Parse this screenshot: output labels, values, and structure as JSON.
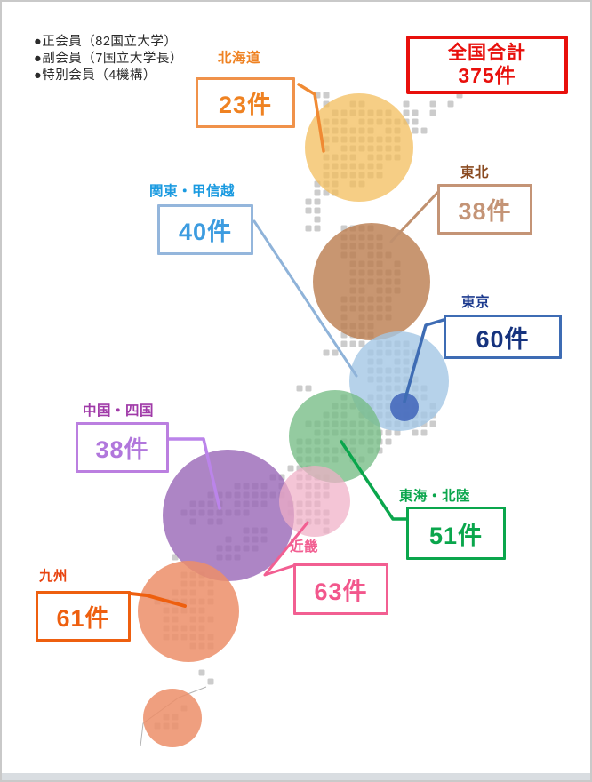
{
  "legend": {
    "items": [
      "●正会員（82国立大学）",
      "●副会員（7国立大学長）",
      "●特別会員（4機構）"
    ]
  },
  "total": {
    "label": "全国合計",
    "value": "375件",
    "color": "#e8100c"
  },
  "chart_data": {
    "type": "bubble-map",
    "title": "全国合計 375件",
    "unit": "件",
    "total": 375,
    "regions": [
      {
        "name": "北海道",
        "value": 23
      },
      {
        "name": "東北",
        "value": 38
      },
      {
        "name": "関東・甲信越",
        "value": 40
      },
      {
        "name": "東京",
        "value": 60
      },
      {
        "name": "東海・北陸",
        "value": 51
      },
      {
        "name": "中国・四国",
        "value": 38
      },
      {
        "name": "近畿",
        "value": 63
      },
      {
        "name": "九州",
        "value": 61
      }
    ],
    "annotations": [
      "正会員（82国立大学）",
      "副会員（7国立大学長）",
      "特別会員（4機構）"
    ],
    "legend_position": "top-left",
    "grid": false
  },
  "regions": [
    {
      "id": "hokkaido",
      "label": "北海道",
      "value_text": "23件",
      "label_color": "#ef8222",
      "border_color": "#f0924a",
      "value_color": "#ef8222",
      "bubble_color": "rgba(243,190,92,0.75)",
      "leader_color": "#f08a33"
    },
    {
      "id": "tohoku",
      "label": "東北",
      "value_text": "38件",
      "label_color": "#8a4a20",
      "border_color": "#c49476",
      "value_color": "#c49476",
      "bubble_color": "rgba(186,124,78,0.8)",
      "leader_color": "#c0906e"
    },
    {
      "id": "kanto",
      "label": "関東・甲信越",
      "value_text": "40件",
      "label_color": "#1a9ae0",
      "border_color": "#94b6dc",
      "value_color": "#3d9ce0",
      "bubble_color": "rgba(164,199,229,0.8)",
      "leader_color": "#8fb3d9"
    },
    {
      "id": "tokyo",
      "label": "東京",
      "value_text": "60件",
      "label_color": "#1c3a8e",
      "border_color": "#3e6cb4",
      "value_color": "#16337e",
      "bubble_color": "rgba(70,105,188,0.9)",
      "leader_color": "#3e6cb4"
    },
    {
      "id": "tokai",
      "label": "東海・北陸",
      "value_text": "51件",
      "label_color": "#0aa64c",
      "border_color": "#0aa64c",
      "value_color": "#0aa64c",
      "bubble_color": "rgba(118,189,133,0.78)",
      "leader_color": "#0aa64c"
    },
    {
      "id": "chugoku",
      "label": "中国・四国",
      "value_text": "38件",
      "label_color": "#a03aa8",
      "border_color": "#bb7fe0",
      "value_color": "#b177dc",
      "bubble_color": "rgba(152,102,182,0.8)",
      "leader_color": "#bb84ea"
    },
    {
      "id": "kinki",
      "label": "近畿",
      "value_text": "63件",
      "label_color": "#f25f92",
      "border_color": "#f25f92",
      "value_color": "#f2578c",
      "bubble_color": "rgba(240,175,198,0.72)",
      "leader_color": "#f25f92"
    },
    {
      "id": "kyushu",
      "label": "九州",
      "value_text": "61件",
      "label_color": "#e8430f",
      "border_color": "#ee5f0f",
      "value_color": "#ee5f0f",
      "bubble_color": "rgba(236,142,105,0.85)",
      "leader_color": "#ee5f0f"
    },
    {
      "id": "okinawa",
      "bubble_color": "rgba(236,142,105,0.85)"
    }
  ]
}
